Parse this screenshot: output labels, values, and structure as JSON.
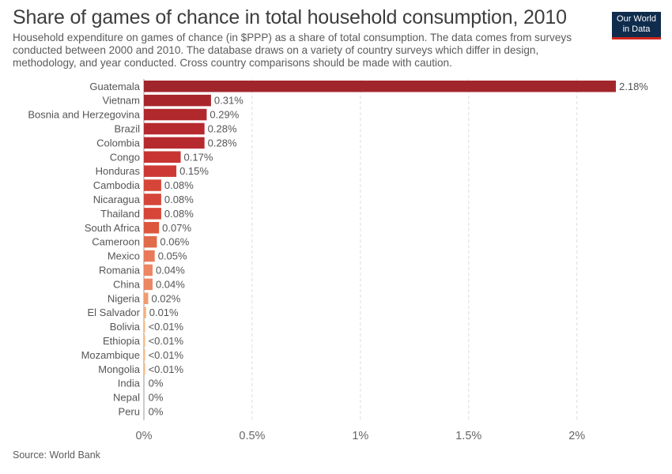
{
  "header": {
    "title": "Share of games of chance in total household consumption, 2010",
    "subtitle": "Household expenditure on games of chance (in $PPP) as a share of total consumption. The data comes from surveys conducted between 2000 and 2010. The database draws on a variety of country surveys which differ in design, methodology, and year conducted. Cross country comparisons should be made with caution."
  },
  "logo": {
    "line1": "Our World",
    "line2": "in Data",
    "bg_color": "#0f2c4d",
    "accent_color": "#ce261e"
  },
  "footer": {
    "source": "Source: World Bank"
  },
  "chart_data": {
    "type": "bar",
    "orientation": "horizontal",
    "title": "Share of games of chance in total household consumption, 2010",
    "xlim": [
      0,
      2.18
    ],
    "x_ticks": [
      "0%",
      "0.5%",
      "1%",
      "1.5%",
      "2%"
    ],
    "x_tick_values": [
      0,
      0.5,
      1,
      1.5,
      2
    ],
    "grid": "vertical dashed",
    "categories": [
      "Guatemala",
      "Vietnam",
      "Bosnia and Herzegovina",
      "Brazil",
      "Colombia",
      "Congo",
      "Honduras",
      "Cambodia",
      "Nicaragua",
      "Thailand",
      "South Africa",
      "Cameroon",
      "Mexico",
      "Romania",
      "China",
      "Nigeria",
      "El Salvador",
      "Bolivia",
      "Ethiopia",
      "Mozambique",
      "Mongolia",
      "India",
      "Nepal",
      "Peru"
    ],
    "values": [
      2.18,
      0.31,
      0.29,
      0.28,
      0.28,
      0.17,
      0.15,
      0.08,
      0.08,
      0.08,
      0.07,
      0.06,
      0.05,
      0.04,
      0.04,
      0.02,
      0.01,
      0.005,
      0.005,
      0.005,
      0.005,
      0,
      0,
      0
    ],
    "value_labels": [
      "2.18%",
      "0.31%",
      "0.29%",
      "0.28%",
      "0.28%",
      "0.17%",
      "0.15%",
      "0.08%",
      "0.08%",
      "0.08%",
      "0.07%",
      "0.06%",
      "0.05%",
      "0.04%",
      "0.04%",
      "0.02%",
      "0.01%",
      "<0.01%",
      "<0.01%",
      "<0.01%",
      "<0.01%",
      "0%",
      "0%",
      "0%"
    ],
    "colors": [
      "#a1262b",
      "#a8262b",
      "#b1282d",
      "#b62a2f",
      "#b62a2f",
      "#c73532",
      "#cd3a36",
      "#d64539",
      "#d64539",
      "#d64539",
      "#dc573e",
      "#e16a4a",
      "#e9795b",
      "#ec8663",
      "#ec8663",
      "#f09b6f",
      "#f4b07f",
      "#f5bd8c",
      "#f5bd8c",
      "#f5bd8c",
      "#f5bd8c",
      "#f7c89a",
      "#f7c89a",
      "#f7c89a"
    ]
  }
}
